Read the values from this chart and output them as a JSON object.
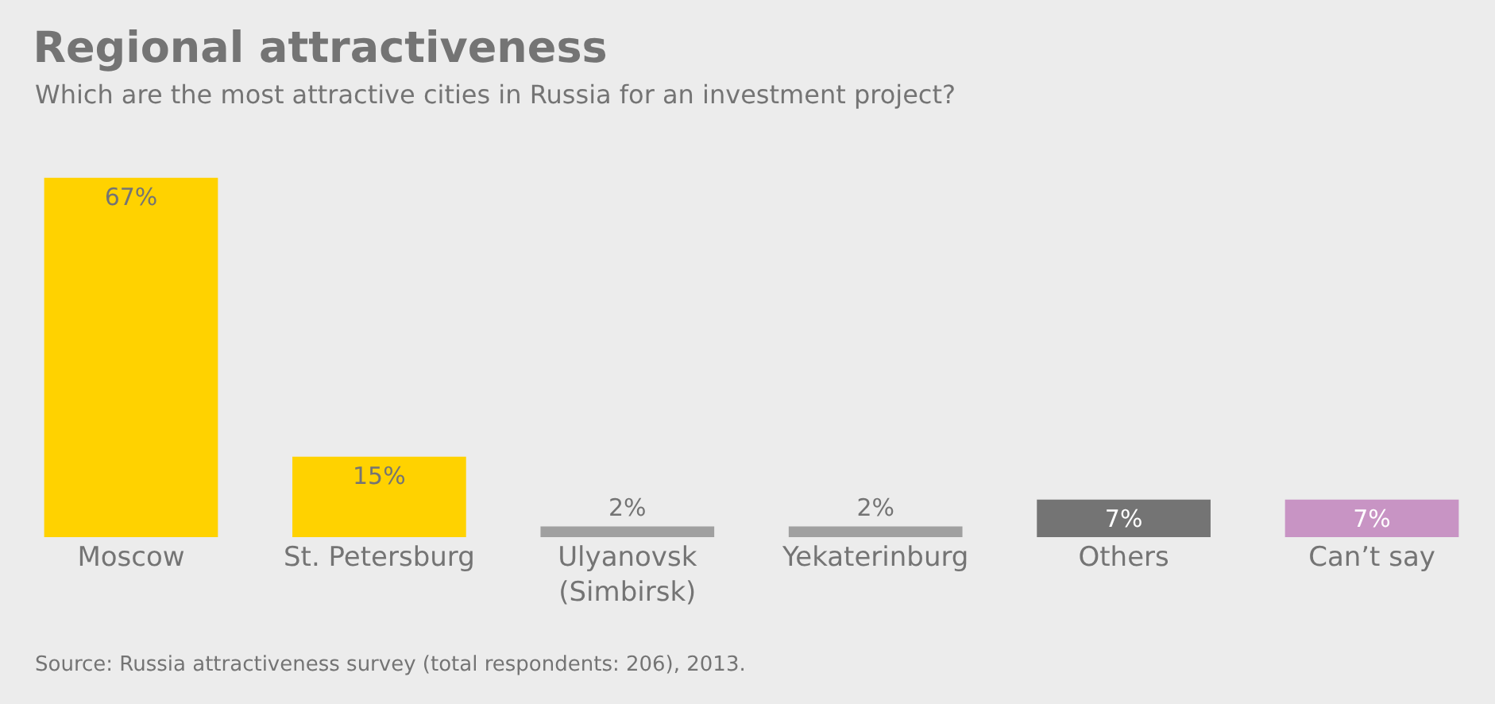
{
  "chart_data": {
    "type": "bar",
    "title": "Regional attractiveness",
    "subtitle": "Which are the most attractive cities in Russia for an investment project?",
    "categories": [
      "Moscow",
      "St. Petersburg",
      "Ulyanovsk\n(Simbirsk)",
      "Yekaterinburg",
      "Others",
      "Can’t say"
    ],
    "values": [
      67,
      15,
      2,
      2,
      7,
      7
    ],
    "colors": [
      "#ffd200",
      "#ffd200",
      "#a0a0a0",
      "#a0a0a0",
      "#747474",
      "#c894c4"
    ],
    "value_labels": [
      "67%",
      "15%",
      "2%",
      "2%",
      "7%",
      "7%"
    ],
    "annotations": [
      "Source: Russia attractiveness survey (total respondents: 206), 2013."
    ],
    "grid": false
  }
}
